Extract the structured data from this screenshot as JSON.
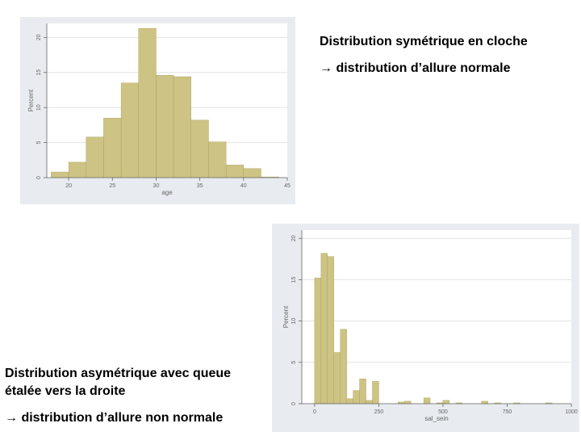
{
  "captions": {
    "top_title": "Distribution symétrique en cloche",
    "top_conclusion": "distribution d’allure normale",
    "bottom_title_line1": "Distribution asymétrique avec queue",
    "bottom_title_line2": "étalée vers la droite",
    "bottom_conclusion": "distribution d’allure non normale",
    "arrow": "→"
  },
  "colors": {
    "bar_fill": "#cdc384",
    "bar_stroke": "#a89d55",
    "plot_bg": "#ffffff",
    "panel_bg": "#e8ecf0",
    "grid": "#e2e2e2",
    "axis_text": "#666666"
  },
  "chart_data": [
    {
      "type": "bar",
      "xlabel": "age",
      "ylabel": "Percent",
      "xlim": [
        17.5,
        45
      ],
      "ylim": [
        0,
        22
      ],
      "xticks": [
        20,
        25,
        30,
        35,
        40,
        45
      ],
      "yticks": [
        0,
        5,
        10,
        15,
        20
      ],
      "bin_width": 2,
      "bins": [
        {
          "x0": 18,
          "value": 0.8
        },
        {
          "x0": 20,
          "value": 2.2
        },
        {
          "x0": 22,
          "value": 5.8
        },
        {
          "x0": 24,
          "value": 8.5
        },
        {
          "x0": 26,
          "value": 13.5
        },
        {
          "x0": 28,
          "value": 21.3
        },
        {
          "x0": 30,
          "value": 14.6
        },
        {
          "x0": 32,
          "value": 14.4
        },
        {
          "x0": 34,
          "value": 8.2
        },
        {
          "x0": 36,
          "value": 5.1
        },
        {
          "x0": 38,
          "value": 1.8
        },
        {
          "x0": 40,
          "value": 1.3
        },
        {
          "x0": 42,
          "value": 0.1
        }
      ],
      "grid": true
    },
    {
      "type": "bar",
      "xlabel": "sal_sein",
      "ylabel": "Percent",
      "xlim": [
        -50,
        1000
      ],
      "ylim": [
        0,
        21
      ],
      "xticks": [
        0,
        250,
        500,
        750,
        1000
      ],
      "yticks": [
        0,
        5,
        10,
        15,
        20
      ],
      "bin_width": 25,
      "bins": [
        {
          "x0": 0,
          "value": 15.2
        },
        {
          "x0": 25,
          "value": 18.2
        },
        {
          "x0": 50,
          "value": 17.8
        },
        {
          "x0": 75,
          "value": 6.2
        },
        {
          "x0": 100,
          "value": 9.0
        },
        {
          "x0": 125,
          "value": 0.6
        },
        {
          "x0": 150,
          "value": 1.6
        },
        {
          "x0": 175,
          "value": 3.0
        },
        {
          "x0": 200,
          "value": 0.4
        },
        {
          "x0": 225,
          "value": 2.7
        },
        {
          "x0": 325,
          "value": 0.2
        },
        {
          "x0": 350,
          "value": 0.3
        },
        {
          "x0": 425,
          "value": 0.7
        },
        {
          "x0": 475,
          "value": 0.1
        },
        {
          "x0": 500,
          "value": 0.4
        },
        {
          "x0": 550,
          "value": 0.1
        },
        {
          "x0": 650,
          "value": 0.3
        },
        {
          "x0": 700,
          "value": 0.1
        },
        {
          "x0": 775,
          "value": 0.1
        },
        {
          "x0": 900,
          "value": 0.1
        }
      ],
      "grid": true
    }
  ]
}
